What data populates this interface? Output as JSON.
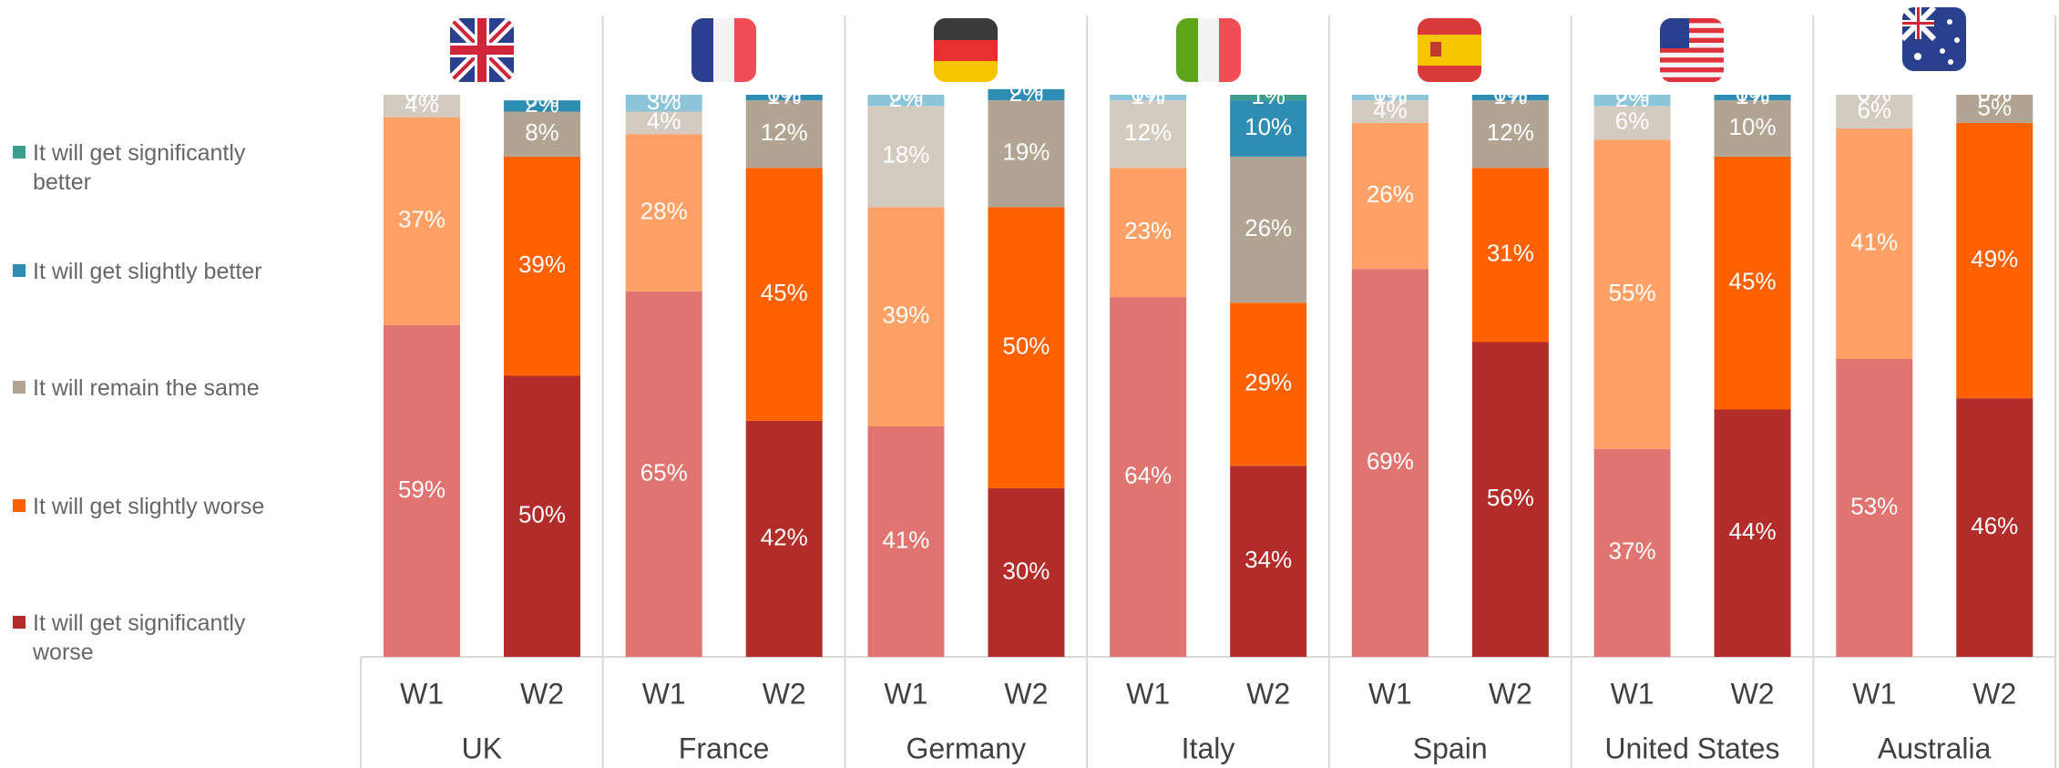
{
  "chart_data": {
    "type": "bar",
    "stacked": true,
    "groups": [
      "UK",
      "France",
      "Germany",
      "Italy",
      "Spain",
      "United States",
      "Australia"
    ],
    "categories": [
      "W1",
      "W2",
      "W1",
      "W2",
      "W1",
      "W2",
      "W1",
      "W2",
      "W1",
      "W2",
      "W1",
      "W2",
      "W1",
      "W2"
    ],
    "ylim": [
      0,
      100
    ],
    "series": [
      {
        "name": "It will get significantly better",
        "color": "#3d9e8c",
        "w1_color": "#8fcfc2",
        "values": [
          0,
          0,
          0,
          0,
          0,
          0,
          0,
          1,
          0,
          0,
          0,
          0,
          0,
          0
        ],
        "value_labels": [
          "0%",
          "0%",
          "0%",
          "0%",
          "0%",
          "0%",
          "0%",
          "1%",
          "0%",
          "0%",
          "0%",
          "0%",
          "0%",
          "0%"
        ]
      },
      {
        "name": "It will get slightly better",
        "color": "#2f8db4",
        "w1_color": "#8cc5da",
        "values": [
          0,
          2,
          3,
          1,
          2,
          2,
          1,
          10,
          1,
          1,
          2,
          1,
          0,
          0
        ],
        "value_labels": [
          "0%",
          "2%",
          "3%",
          "1%",
          "2%",
          "2%",
          "1%",
          "10%",
          "1%",
          "1%",
          "2%",
          "1%",
          "0%",
          "0%"
        ]
      },
      {
        "name": "It will remain the same",
        "color": "#b1a493",
        "w1_color": "#d3cbc0",
        "values": [
          4,
          8,
          4,
          12,
          18,
          19,
          12,
          26,
          4,
          12,
          6,
          10,
          6,
          5
        ],
        "value_labels": [
          "4%",
          "8%",
          "4%",
          "12%",
          "18%",
          "19%",
          "12%",
          "26%",
          "4%",
          "12%",
          "6%",
          "10%",
          "6%",
          "5%"
        ]
      },
      {
        "name": "It will get slightly worse",
        "color": "#ff6000",
        "w1_color": "#ffa166",
        "values": [
          37,
          39,
          28,
          45,
          39,
          50,
          23,
          29,
          26,
          31,
          55,
          45,
          41,
          49
        ],
        "value_labels": [
          "37%",
          "39%",
          "28%",
          "45%",
          "39%",
          "50%",
          "23%",
          "29%",
          "26%",
          "31%",
          "55%",
          "45%",
          "41%",
          "49%"
        ]
      },
      {
        "name": "It will get significantly worse",
        "color": "#b22d2a",
        "w1_color": "#e07470",
        "values": [
          59,
          50,
          65,
          42,
          41,
          30,
          64,
          34,
          69,
          56,
          37,
          44,
          53,
          46
        ],
        "value_labels": [
          "59%",
          "50%",
          "65%",
          "42%",
          "41%",
          "30%",
          "64%",
          "34%",
          "69%",
          "56%",
          "37%",
          "44%",
          "53%",
          "46%"
        ]
      }
    ]
  }
}
